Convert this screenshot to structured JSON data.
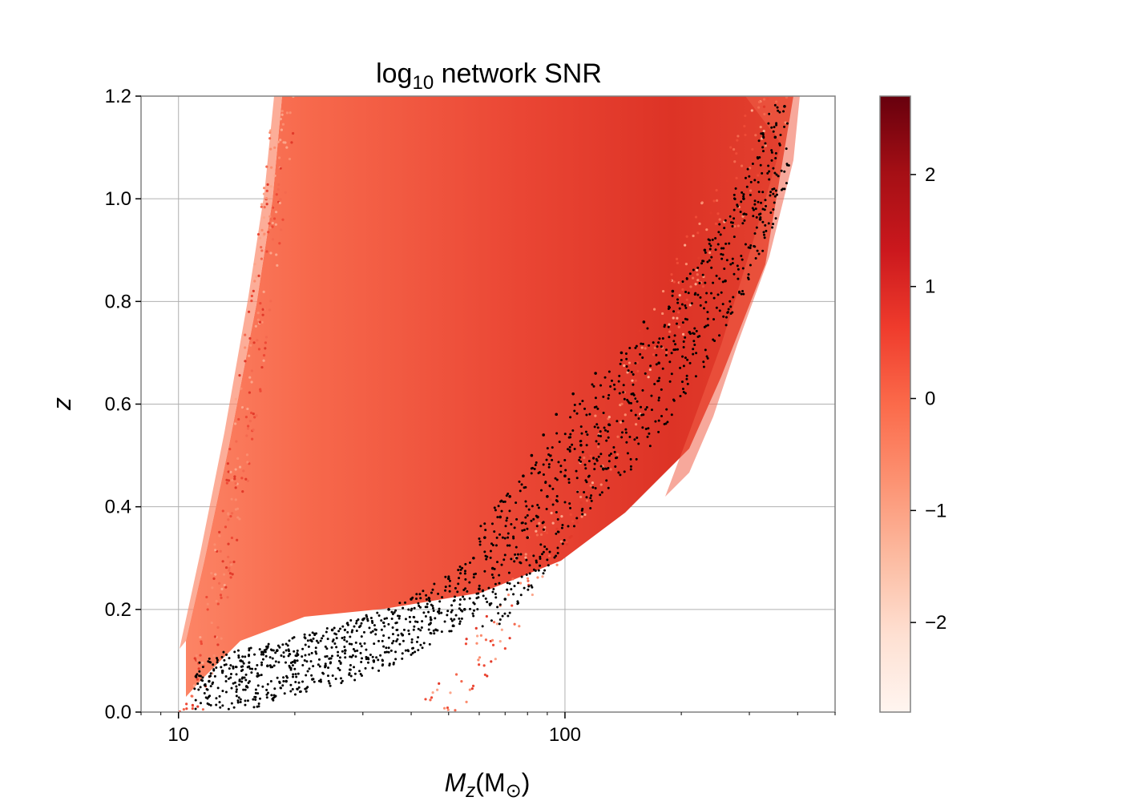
{
  "chart_data": {
    "type": "scatter",
    "title": {
      "prefix": "log",
      "subscript": "10",
      "suffix": " network SNR"
    },
    "xlabel": {
      "italic": "M",
      "italic_sub": "z",
      "rest": "(M",
      "sub": "⊙",
      "close": ")"
    },
    "ylabel": "z",
    "x_scale": "log",
    "xlim": [
      8,
      500
    ],
    "ylim": [
      0.0,
      1.2
    ],
    "x_ticks": [
      {
        "value": 10,
        "label": "10"
      },
      {
        "value": 100,
        "label": "100"
      }
    ],
    "y_ticks": [
      {
        "value": 0.0,
        "label": "0.0"
      },
      {
        "value": 0.2,
        "label": "0.2"
      },
      {
        "value": 0.4,
        "label": "0.4"
      },
      {
        "value": 0.6,
        "label": "0.6"
      },
      {
        "value": 0.8,
        "label": "0.8"
      },
      {
        "value": 1.0,
        "label": "1.0"
      },
      {
        "value": 1.2,
        "label": "1.2"
      }
    ],
    "grid": true,
    "colormap": "Reds",
    "colorbar": {
      "vmin": -2.8,
      "vmax": 2.7,
      "ticks": [
        {
          "value": -2,
          "label": "−2"
        },
        {
          "value": -1,
          "label": "−1"
        },
        {
          "value": 0,
          "label": "0"
        },
        {
          "value": 1,
          "label": "1"
        },
        {
          "value": 2,
          "label": "2"
        }
      ]
    },
    "series": [
      {
        "marker_color": "#000000",
        "points": [
          [
            12.0,
            0.06
          ],
          [
            13.0,
            0.08
          ],
          [
            14.5,
            0.1
          ],
          [
            15.0,
            0.05
          ],
          [
            16.0,
            0.07
          ],
          [
            17.0,
            0.09
          ],
          [
            18.0,
            0.12
          ],
          [
            19.0,
            0.06
          ],
          [
            20.0,
            0.1
          ],
          [
            22.0,
            0.14
          ],
          [
            24.0,
            0.09
          ],
          [
            25.0,
            0.16
          ],
          [
            27.0,
            0.12
          ],
          [
            30.0,
            0.18
          ],
          [
            32.0,
            0.1
          ],
          [
            35.0,
            0.2
          ],
          [
            38.0,
            0.15
          ],
          [
            40.0,
            0.22
          ],
          [
            45.0,
            0.18
          ],
          [
            50.0,
            0.26
          ],
          [
            55.0,
            0.2
          ],
          [
            58.0,
            0.3
          ],
          [
            60.0,
            0.24
          ],
          [
            62.0,
            0.34
          ],
          [
            65.0,
            0.28
          ],
          [
            68.0,
            0.38
          ],
          [
            70.0,
            0.22
          ],
          [
            72.0,
            0.42
          ],
          [
            75.0,
            0.3
          ],
          [
            78.0,
            0.46
          ],
          [
            80.0,
            0.34
          ],
          [
            82.0,
            0.5
          ],
          [
            85.0,
            0.38
          ],
          [
            88.0,
            0.54
          ],
          [
            90.0,
            0.42
          ],
          [
            95.0,
            0.58
          ],
          [
            100.0,
            0.46
          ],
          [
            105.0,
            0.62
          ],
          [
            110.0,
            0.52
          ],
          [
            120.0,
            0.66
          ],
          [
            130.0,
            0.56
          ],
          [
            140.0,
            0.7
          ],
          [
            150.0,
            0.62
          ],
          [
            160.0,
            0.76
          ],
          [
            175.0,
            0.68
          ],
          [
            190.0,
            0.82
          ],
          [
            210.0,
            0.74
          ],
          [
            230.0,
            0.9
          ],
          [
            260.0,
            0.84
          ],
          [
            290.0,
            1.0
          ],
          [
            320.0,
            0.96
          ],
          [
            350.0,
            1.12
          ],
          [
            370.0,
            1.18
          ]
        ]
      }
    ]
  }
}
